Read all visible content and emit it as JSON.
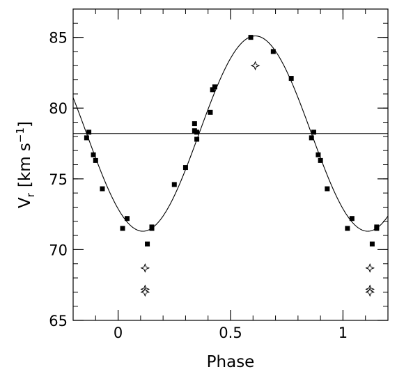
{
  "chart_data": {
    "type": "scatter",
    "xlabel": "Phase",
    "ylabel": {
      "base": "V",
      "sub": "r",
      "unit_open": "[km s",
      "unit_exp": "−1",
      "unit_close": "]"
    },
    "xlim": [
      -0.2,
      1.2
    ],
    "ylim": [
      65,
      87
    ],
    "x_ticks": [
      {
        "value": 0,
        "label": "0"
      },
      {
        "value": 0.5,
        "label": "0.5"
      },
      {
        "value": 1,
        "label": "1"
      }
    ],
    "x_minor_step": 0.1,
    "y_ticks": [
      {
        "value": 65,
        "label": "65"
      },
      {
        "value": 70,
        "label": "70"
      },
      {
        "value": 75,
        "label": "75"
      },
      {
        "value": 80,
        "label": "80"
      },
      {
        "value": 85,
        "label": "85"
      }
    ],
    "y_minor_step": 1,
    "grid": false,
    "mean_velocity": 78.2,
    "fit_curve": {
      "form": "sinusoid",
      "gamma": 78.2,
      "amplitude": 6.9,
      "phase_of_max": 0.61
    },
    "series": [
      {
        "marker": "filled-square",
        "points": [
          [
            -0.14,
            77.9
          ],
          [
            -0.13,
            78.3
          ],
          [
            -0.11,
            76.7
          ],
          [
            -0.1,
            76.3
          ],
          [
            -0.07,
            74.3
          ],
          [
            0.02,
            71.5
          ],
          [
            0.04,
            72.2
          ],
          [
            0.13,
            70.4
          ],
          [
            0.15,
            71.6
          ],
          [
            0.15,
            71.5
          ],
          [
            0.25,
            74.6
          ],
          [
            0.3,
            75.8
          ],
          [
            0.34,
            78.4
          ],
          [
            0.34,
            78.9
          ],
          [
            0.35,
            78.3
          ],
          [
            0.35,
            77.8
          ],
          [
            0.41,
            79.7
          ],
          [
            0.42,
            81.3
          ],
          [
            0.43,
            81.5
          ],
          [
            0.59,
            85.0
          ],
          [
            0.69,
            84.0
          ],
          [
            0.77,
            82.1
          ],
          [
            0.86,
            77.9
          ],
          [
            0.87,
            78.3
          ],
          [
            0.89,
            76.7
          ],
          [
            0.9,
            76.3
          ],
          [
            0.93,
            74.3
          ],
          [
            1.02,
            71.5
          ],
          [
            1.04,
            72.2
          ],
          [
            1.13,
            70.4
          ],
          [
            1.15,
            71.6
          ],
          [
            1.15,
            71.5
          ]
        ]
      },
      {
        "marker": "open-star",
        "points": [
          [
            0.61,
            83.0
          ],
          [
            0.12,
            68.7
          ],
          [
            0.12,
            67.2
          ],
          [
            0.12,
            67.0
          ],
          [
            1.12,
            68.7
          ],
          [
            1.12,
            67.2
          ],
          [
            1.12,
            67.0
          ]
        ]
      }
    ]
  }
}
